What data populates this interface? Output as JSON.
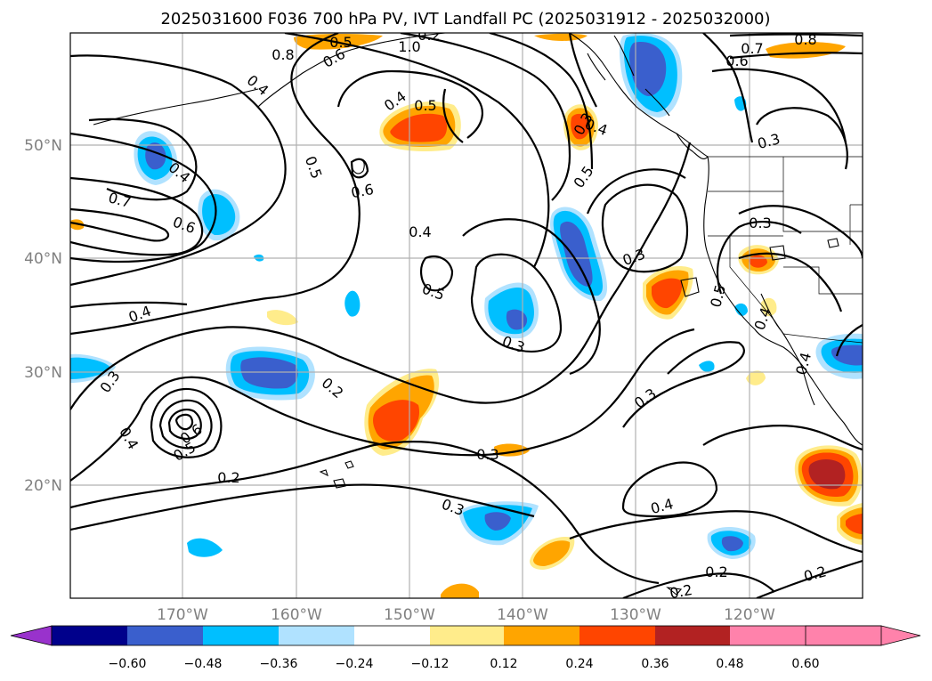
{
  "title": "2025031600 F036 700 hPa PV, IVT Landfall PC (2025031912 - 2025032000)",
  "map": {
    "lat_labels": [
      "50°N",
      "40°N",
      "30°N",
      "20°N"
    ],
    "lon_labels": [
      "170°W",
      "160°W",
      "150°W",
      "140°W",
      "130°W",
      "120°W"
    ]
  },
  "contour_labels": [
    "0.8",
    "1.0",
    "0.2",
    "0.6",
    "0.4",
    "0.5",
    "0.7",
    "0.8",
    "0.6",
    "0.3",
    "0.4",
    "0.5",
    "0.4",
    "0.3",
    "0.4",
    "0.5",
    "0.6",
    "0.7",
    "0.6",
    "0.5",
    "0.4",
    "0.5",
    "0.3",
    "0.3",
    "0.5",
    "0.4",
    "0.4",
    "0.3",
    "0.2",
    "0.6",
    "0.5",
    "0.4",
    "0.2",
    "0.3",
    "0.3",
    "0.3",
    "0.4",
    "0.2",
    "0.2",
    "0.2",
    "0.3",
    "0.4"
  ],
  "colorbar": {
    "ticks": [
      "−0.60",
      "−0.48",
      "−0.36",
      "−0.24",
      "−0.12",
      "0.12",
      "0.24",
      "0.36",
      "0.48",
      "0.60"
    ],
    "colors": [
      "#9932cc",
      "#00008b",
      "#3a5fcd",
      "#00bfff",
      "#b0e2ff",
      "#ffffff",
      "#ffec8b",
      "#ffa500",
      "#ff4500",
      "#b22222",
      "#ff82ab"
    ]
  }
}
